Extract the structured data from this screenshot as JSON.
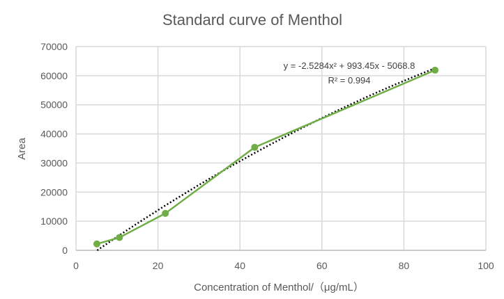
{
  "chart_data": {
    "type": "scatter",
    "title": "Standard curve of Menthol",
    "xlabel": "Concentration of Menthol/（μg/mL）",
    "ylabel": "Area",
    "xlim": [
      0,
      100
    ],
    "ylim": [
      0,
      70000
    ],
    "xticks": [
      0,
      20,
      40,
      60,
      80,
      100
    ],
    "yticks": [
      0,
      10000,
      20000,
      30000,
      40000,
      50000,
      60000,
      70000
    ],
    "grid": true,
    "series": [
      {
        "x": [
          5.1,
          10.6,
          21.8,
          43.6,
          87.6
        ],
        "y": [
          2200,
          4400,
          12700,
          35400,
          61900
        ],
        "color": "#70AD47",
        "style": "line-with-markers"
      }
    ],
    "trendline": {
      "type": "polynomial",
      "coefficients": [
        -2.5284,
        993.45,
        -5068.8
      ],
      "color": "#000000",
      "style": "dotted",
      "equation": "y = -2.5284x² + 993.45x - 5068.8",
      "r_squared": "R² = 0.994"
    }
  }
}
